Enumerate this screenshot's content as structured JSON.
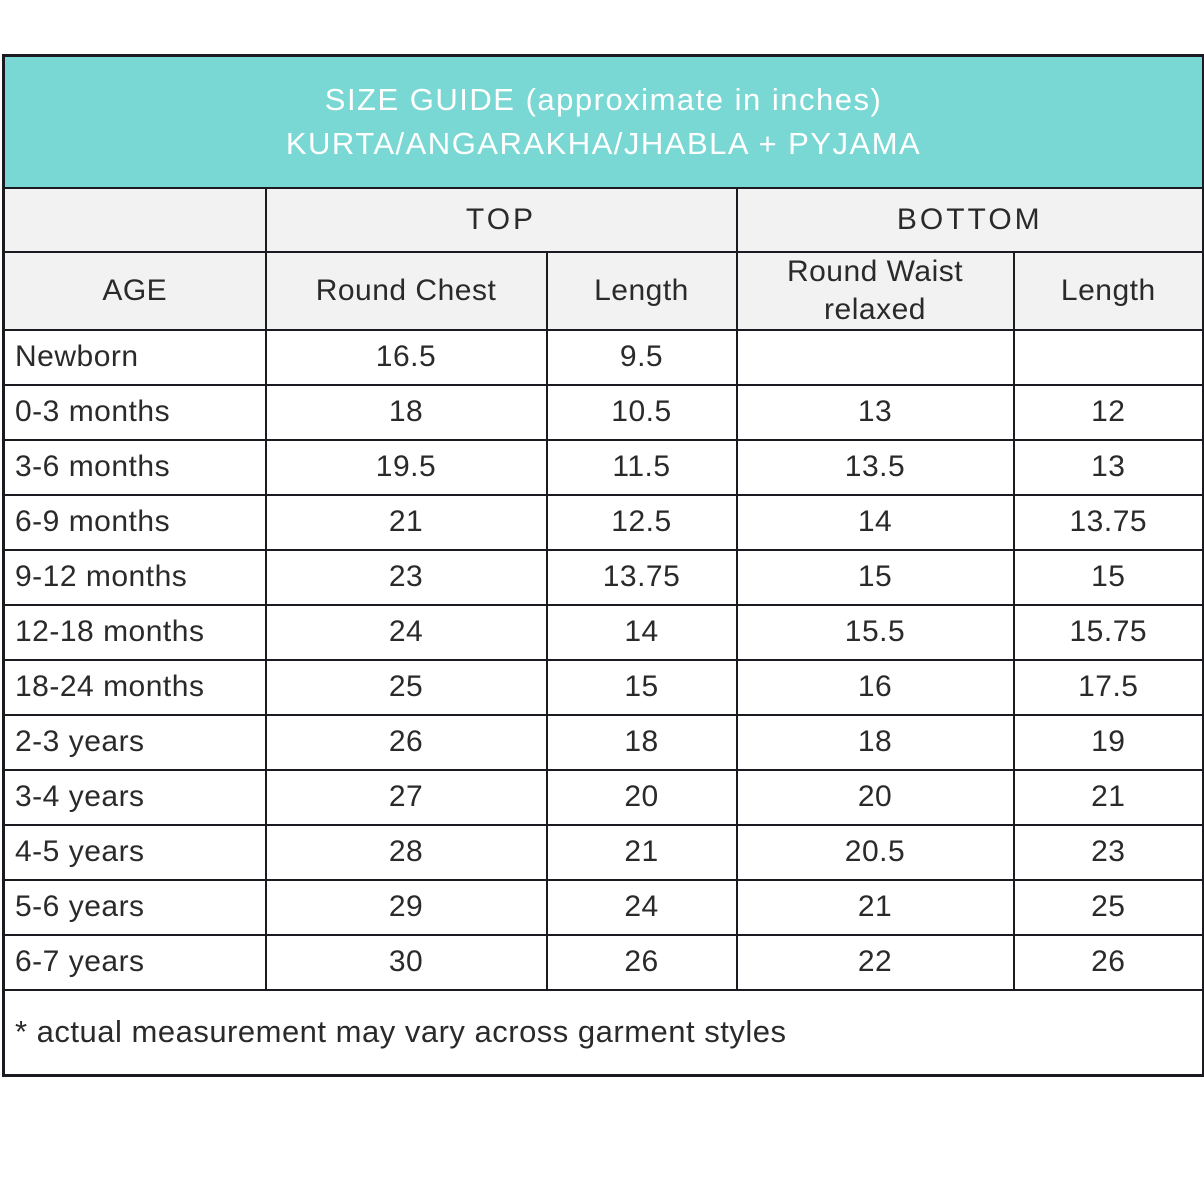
{
  "chart_data": {
    "type": "table",
    "title": "SIZE GUIDE (approximate in inches)",
    "subtitle": "KURTA/ANGARAKHA/JHABLA + PYJAMA",
    "column_groups": {
      "age": "",
      "top": "TOP",
      "bottom": "BOTTOM"
    },
    "columns": [
      "AGE",
      "Round Chest",
      "Length",
      "Round Waist relaxed",
      "Length"
    ],
    "rows": [
      [
        "Newborn",
        "16.5",
        "9.5",
        null,
        null
      ],
      [
        "0-3 months",
        "18",
        "10.5",
        "13",
        "12"
      ],
      [
        "3-6 months",
        "19.5",
        "11.5",
        "13.5",
        "13"
      ],
      [
        "6-9 months",
        "21",
        "12.5",
        "14",
        "13.75"
      ],
      [
        "9-12 months",
        "23",
        "13.75",
        "15",
        "15"
      ],
      [
        "12-18 months",
        "24",
        "14",
        "15.5",
        "15.75"
      ],
      [
        "18-24 months",
        "25",
        "15",
        "16",
        "17.5"
      ],
      [
        "2-3 years",
        "26",
        "18",
        "18",
        "19"
      ],
      [
        "3-4 years",
        "27",
        "20",
        "20",
        "21"
      ],
      [
        "4-5 years",
        "28",
        "21",
        "20.5",
        "23"
      ],
      [
        "5-6 years",
        "29",
        "24",
        "21",
        "25"
      ],
      [
        "6-7 years",
        "30",
        "26",
        "22",
        "26"
      ]
    ],
    "footnote": "* actual measurement may vary across garment styles",
    "units": "inches",
    "layout_hints": {
      "grid": "on",
      "header_rows": 3,
      "footer_rows": 1
    }
  },
  "colors": {
    "accent": "#7ad8d4",
    "header_bg": "#f2f2f2",
    "border": "#1a1a20",
    "text": "#2a2a2a",
    "title_text": "#ffffff"
  }
}
